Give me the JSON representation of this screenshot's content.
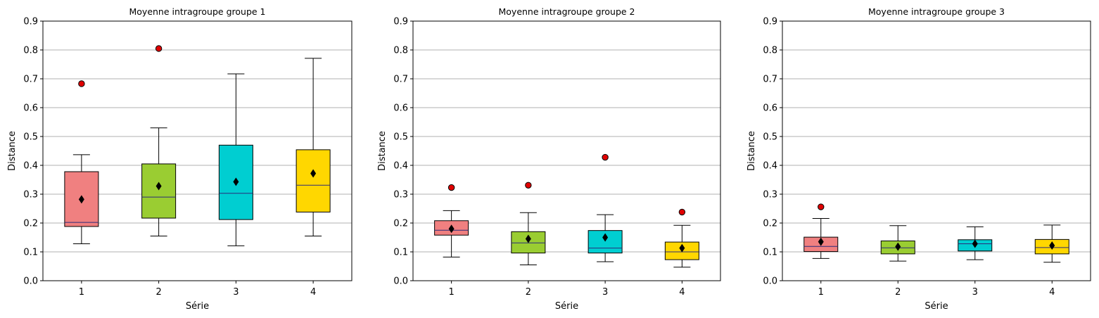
{
  "chart_data": [
    {
      "type": "box",
      "title": "Moyenne intragroupe groupe 1",
      "xlabel": "Série",
      "ylabel": "Distance",
      "ylim": [
        0,
        0.9
      ],
      "yticks": [
        "0.0",
        "0.1",
        "0.2",
        "0.3",
        "0.4",
        "0.5",
        "0.6",
        "0.7",
        "0.8",
        "0.9"
      ],
      "grid": "horizontal",
      "categories": [
        "1",
        "2",
        "3",
        "4"
      ],
      "boxes": [
        {
          "color": "#f08080",
          "whisker_low": 0.128,
          "q1": 0.188,
          "median": 0.202,
          "q3": 0.378,
          "whisker_high": 0.437,
          "mean": 0.282,
          "outliers": [
            0.683
          ]
        },
        {
          "color": "#9acd32",
          "whisker_low": 0.155,
          "q1": 0.217,
          "median": 0.29,
          "q3": 0.405,
          "whisker_high": 0.53,
          "mean": 0.328,
          "outliers": [
            0.805
          ]
        },
        {
          "color": "#00ced1",
          "whisker_low": 0.121,
          "q1": 0.212,
          "median": 0.303,
          "q3": 0.47,
          "whisker_high": 0.717,
          "mean": 0.343,
          "outliers": []
        },
        {
          "color": "#ffd700",
          "whisker_low": 0.155,
          "q1": 0.238,
          "median": 0.331,
          "q3": 0.454,
          "whisker_high": 0.771,
          "mean": 0.372,
          "outliers": []
        }
      ]
    },
    {
      "type": "box",
      "title": "Moyenne intragroupe groupe 2",
      "xlabel": "Série",
      "ylabel": "Distance",
      "ylim": [
        0,
        0.9
      ],
      "yticks": [
        "0.0",
        "0.1",
        "0.2",
        "0.3",
        "0.4",
        "0.5",
        "0.6",
        "0.7",
        "0.8",
        "0.9"
      ],
      "grid": "horizontal",
      "categories": [
        "1",
        "2",
        "3",
        "4"
      ],
      "boxes": [
        {
          "color": "#f08080",
          "whisker_low": 0.082,
          "q1": 0.158,
          "median": 0.175,
          "q3": 0.208,
          "whisker_high": 0.243,
          "mean": 0.18,
          "outliers": [
            0.323
          ]
        },
        {
          "color": "#9acd32",
          "whisker_low": 0.055,
          "q1": 0.096,
          "median": 0.131,
          "q3": 0.17,
          "whisker_high": 0.236,
          "mean": 0.145,
          "outliers": [
            0.331
          ]
        },
        {
          "color": "#00ced1",
          "whisker_low": 0.066,
          "q1": 0.096,
          "median": 0.113,
          "q3": 0.174,
          "whisker_high": 0.229,
          "mean": 0.15,
          "outliers": [
            0.428
          ]
        },
        {
          "color": "#ffd700",
          "whisker_low": 0.047,
          "q1": 0.073,
          "median": 0.1,
          "q3": 0.134,
          "whisker_high": 0.192,
          "mean": 0.113,
          "outliers": [
            0.238
          ]
        }
      ]
    },
    {
      "type": "box",
      "title": "Moyenne intragroupe groupe 3",
      "xlabel": "Série",
      "ylabel": "Distance",
      "ylim": [
        0,
        0.9
      ],
      "yticks": [
        "0.0",
        "0.1",
        "0.2",
        "0.3",
        "0.4",
        "0.5",
        "0.6",
        "0.7",
        "0.8",
        "0.9"
      ],
      "grid": "horizontal",
      "categories": [
        "1",
        "2",
        "3",
        "4"
      ],
      "boxes": [
        {
          "color": "#f08080",
          "whisker_low": 0.077,
          "q1": 0.101,
          "median": 0.119,
          "q3": 0.151,
          "whisker_high": 0.216,
          "mean": 0.135,
          "outliers": [
            0.256
          ]
        },
        {
          "color": "#9acd32",
          "whisker_low": 0.068,
          "q1": 0.093,
          "median": 0.114,
          "q3": 0.138,
          "whisker_high": 0.191,
          "mean": 0.118,
          "outliers": []
        },
        {
          "color": "#00ced1",
          "whisker_low": 0.073,
          "q1": 0.103,
          "median": 0.128,
          "q3": 0.142,
          "whisker_high": 0.187,
          "mean": 0.128,
          "outliers": []
        },
        {
          "color": "#ffd700",
          "whisker_low": 0.064,
          "q1": 0.093,
          "median": 0.115,
          "q3": 0.143,
          "whisker_high": 0.193,
          "mean": 0.122,
          "outliers": []
        }
      ]
    }
  ],
  "colors": {
    "grid": "#b0b0b0",
    "outlier_fill": "#e00000",
    "mean_marker": "#000000"
  }
}
